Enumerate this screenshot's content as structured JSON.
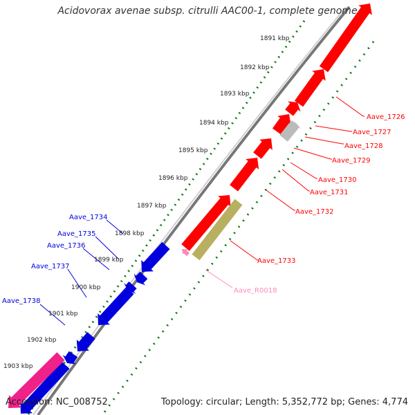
{
  "title": "Acidovorax avenae subsp. citrulli AAC00-1, complete genome",
  "footer": {
    "accession": "Accession: NC_008752",
    "topology": "Topology: circular; Length: 5,352,772 bp; Genes: 4,774"
  },
  "colors": {
    "forward_gene": "#ff0000",
    "reverse_gene": "#0000dd",
    "rna_gene": "#ff88bb",
    "pseudo_gene": "#bbbbbb",
    "misc_feature": "#b8b060",
    "reverse_rna": "#ee2288",
    "backbone": "#777777",
    "tick_green": "#117711"
  },
  "scale": [
    {
      "label": "1891 kbp"
    },
    {
      "label": "1892 kbp"
    },
    {
      "label": "1893 kbp"
    },
    {
      "label": "1894 kbp"
    },
    {
      "label": "1895 kbp"
    },
    {
      "label": "1896 kbp"
    },
    {
      "label": "1897 kbp"
    },
    {
      "label": "1898 kbp"
    },
    {
      "label": "1899 kbp"
    },
    {
      "label": "1900 kbp"
    },
    {
      "label": "1901 kbp"
    },
    {
      "label": "1902 kbp"
    },
    {
      "label": "1903 kbp"
    }
  ],
  "gene_labels": [
    {
      "name": "Aave_1726",
      "strand": "forward"
    },
    {
      "name": "Aave_1727",
      "strand": "forward"
    },
    {
      "name": "Aave_1728",
      "strand": "forward"
    },
    {
      "name": "Aave_1729",
      "strand": "forward"
    },
    {
      "name": "Aave_1730",
      "strand": "forward"
    },
    {
      "name": "Aave_1731",
      "strand": "forward"
    },
    {
      "name": "Aave_1732",
      "strand": "forward"
    },
    {
      "name": "Aave_1733",
      "strand": "forward"
    },
    {
      "name": "Aave_R0018",
      "strand": "rna"
    },
    {
      "name": "Aave_1734",
      "strand": "reverse"
    },
    {
      "name": "Aave_1735",
      "strand": "reverse"
    },
    {
      "name": "Aave_1736",
      "strand": "reverse"
    },
    {
      "name": "Aave_1737",
      "strand": "reverse"
    },
    {
      "name": "Aave_1738",
      "strand": "reverse"
    }
  ]
}
